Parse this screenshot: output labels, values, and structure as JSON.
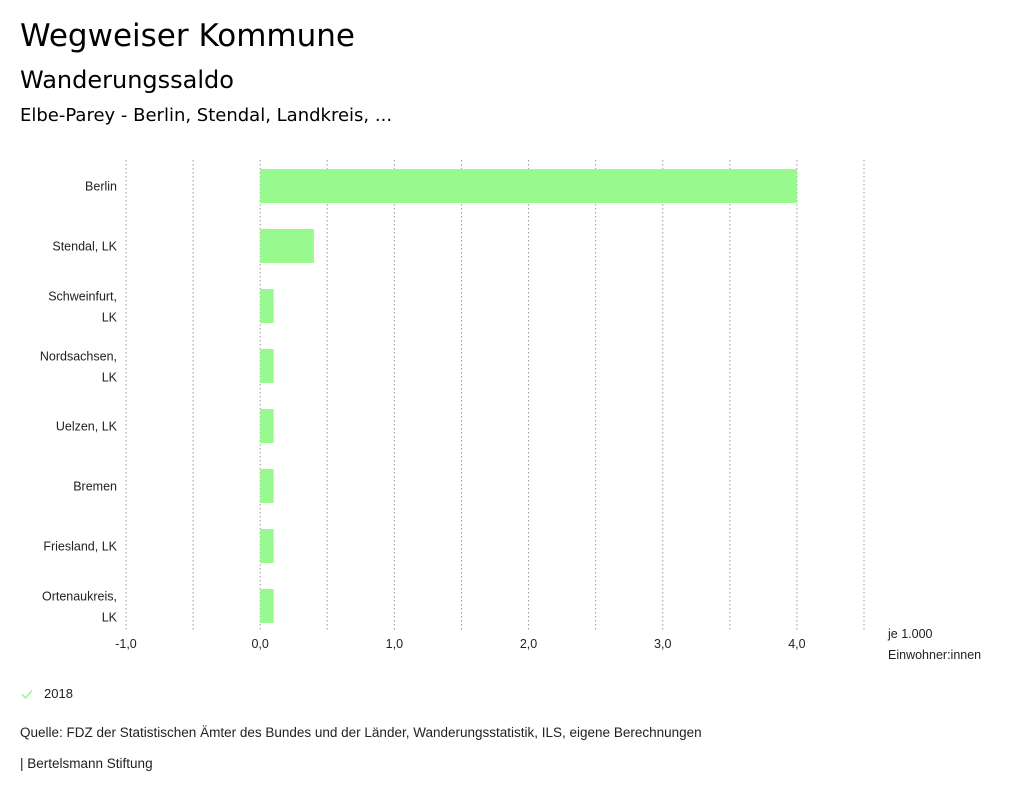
{
  "header": {
    "title": "Wegweiser Kommune",
    "subtitle": "Wanderungssaldo",
    "region": "Elbe-Parey - Berlin, Stendal, Landkreis, ..."
  },
  "chart_data": {
    "type": "bar",
    "orientation": "horizontal",
    "categories": [
      [
        "Berlin"
      ],
      [
        "Stendal, LK"
      ],
      [
        "Schweinfurt,",
        "LK"
      ],
      [
        "Nordsachsen,",
        "LK"
      ],
      [
        "Uelzen, LK"
      ],
      [
        "Bremen"
      ],
      [
        "Friesland, LK"
      ],
      [
        "Ortenaukreis,",
        "LK"
      ]
    ],
    "series": [
      {
        "name": "2018",
        "color": "#98f98f",
        "values": [
          4.0,
          0.4,
          0.1,
          0.1,
          0.1,
          0.1,
          0.1,
          0.1
        ]
      }
    ],
    "xlim": [
      -1.0,
      4.5
    ],
    "xticks": [
      -1.0,
      0.0,
      1.0,
      2.0,
      3.0,
      4.0
    ],
    "xtick_labels": [
      "-1,0",
      "0,0",
      "1,0",
      "2,0",
      "3,0",
      "4,0"
    ],
    "gridlines": [
      -1.0,
      -0.5,
      0.0,
      0.5,
      1.0,
      1.5,
      2.0,
      2.5,
      3.0,
      3.5,
      4.0,
      4.5
    ],
    "unit_label": [
      "je 1.000",
      "Einwohner:innen"
    ],
    "grid": true
  },
  "legend": {
    "label": "2018",
    "color": "#98f98f"
  },
  "footer": {
    "source": "Quelle: FDZ der Statistischen Ämter des Bundes und der Länder, Wanderungsstatistik, ILS, eigene Berechnungen",
    "credit": "| Bertelsmann Stiftung"
  }
}
